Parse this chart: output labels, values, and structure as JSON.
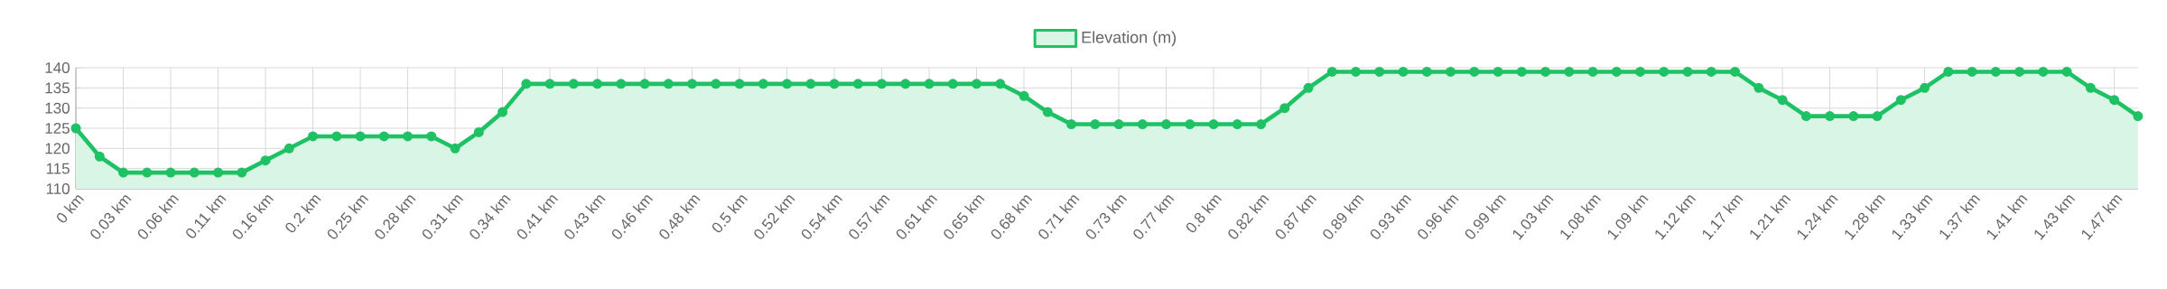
{
  "chart_data": {
    "type": "area",
    "categories": [
      "0 km",
      null,
      "0.03 km",
      null,
      "0.06 km",
      null,
      "0.11 km",
      null,
      "0.16 km",
      null,
      "0.2 km",
      null,
      "0.25 km",
      null,
      "0.28 km",
      null,
      "0.31 km",
      null,
      "0.34 km",
      null,
      "0.41 km",
      null,
      "0.43 km",
      null,
      "0.46 km",
      null,
      "0.48 km",
      null,
      "0.5 km",
      null,
      "0.52 km",
      null,
      "0.54 km",
      null,
      "0.57 km",
      null,
      "0.61 km",
      null,
      "0.65 km",
      null,
      "0.68 km",
      null,
      "0.71 km",
      null,
      "0.73 km",
      null,
      "0.77 km",
      null,
      "0.8 km",
      null,
      "0.82 km",
      null,
      "0.87 km",
      null,
      "0.89 km",
      null,
      "0.93 km",
      null,
      "0.96 km",
      null,
      "0.99 km",
      null,
      "1.03 km",
      null,
      "1.08 km",
      null,
      "1.09 km",
      null,
      "1.12 km",
      null,
      "1.17 km",
      null,
      "1.21 km",
      null,
      "1.24 km",
      null,
      "1.28 km",
      null,
      "1.33 km",
      null,
      "1.37 km",
      null,
      "1.41 km",
      null,
      "1.43 km",
      null,
      "1.47 km",
      null
    ],
    "series": [
      {
        "name": "Elevation (m)",
        "color": "#1ec264",
        "values": [
          125,
          118,
          114,
          114,
          114,
          114,
          114,
          114,
          117,
          120,
          123,
          123,
          123,
          123,
          123,
          123,
          120,
          124,
          129,
          136,
          136,
          136,
          136,
          136,
          136,
          136,
          136,
          136,
          136,
          136,
          136,
          136,
          136,
          136,
          136,
          136,
          136,
          136,
          136,
          136,
          133,
          129,
          126,
          126,
          126,
          126,
          126,
          126,
          126,
          126,
          126,
          130,
          135,
          139,
          139,
          139,
          139,
          139,
          139,
          139,
          139,
          139,
          139,
          139,
          139,
          139,
          139,
          139,
          139,
          139,
          139,
          135,
          132,
          128,
          128,
          128,
          128,
          132,
          135,
          139,
          139,
          139,
          139,
          139,
          139,
          135,
          132,
          128
        ]
      }
    ],
    "ylim": [
      110,
      140
    ],
    "yticks": [
      110,
      115,
      120,
      125,
      130,
      135,
      140
    ],
    "grid": true,
    "legend": "top",
    "marker": "circle"
  }
}
